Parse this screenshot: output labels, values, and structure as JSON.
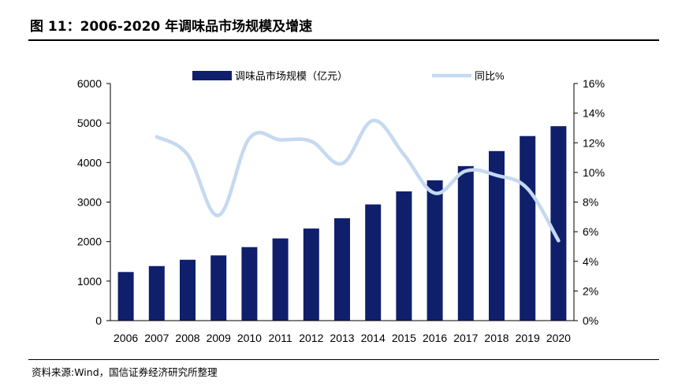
{
  "header": {
    "title": "图 11：2006-2020 年调味品市场规模及增速"
  },
  "footer": {
    "source": "资料来源:Wind，国信证券经济研究所整理"
  },
  "colors": {
    "bar": "#0f1f6b",
    "line": "#c5d9f1",
    "axis": "#000000"
  },
  "chart_data": {
    "type": "bar",
    "categories": [
      "2006",
      "2007",
      "2008",
      "2009",
      "2010",
      "2011",
      "2012",
      "2013",
      "2014",
      "2015",
      "2016",
      "2017",
      "2018",
      "2019",
      "2020"
    ],
    "series": [
      {
        "name": "调味品市场规模（亿元）",
        "type": "bar",
        "axis": "left",
        "values": [
          1230,
          1380,
          1540,
          1650,
          1860,
          2080,
          2330,
          2590,
          2940,
          3270,
          3550,
          3910,
          4290,
          4670,
          4920
        ]
      },
      {
        "name": "同比%",
        "type": "line",
        "axis": "right",
        "values": [
          null,
          12.4,
          11.2,
          7.1,
          12.3,
          12.2,
          12.1,
          10.6,
          13.5,
          11.2,
          8.6,
          10.1,
          9.8,
          8.9,
          5.4
        ]
      }
    ],
    "y_left": {
      "ylim": [
        0,
        6000
      ],
      "ticks": [
        "0",
        "1000",
        "2000",
        "3000",
        "4000",
        "5000",
        "6000"
      ]
    },
    "y_right": {
      "ylim": [
        0,
        16
      ],
      "ticks": [
        "0%",
        "2%",
        "4%",
        "6%",
        "8%",
        "10%",
        "12%",
        "14%",
        "16%"
      ]
    },
    "grid": false,
    "legend": "top-center"
  }
}
